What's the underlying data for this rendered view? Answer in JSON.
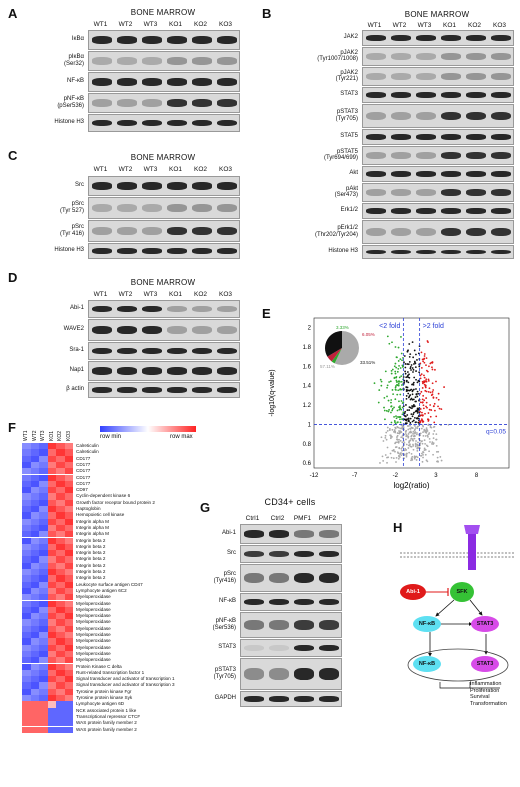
{
  "panels": {
    "A": {
      "letter": "A",
      "title": "BONE MARROW",
      "lanes": [
        "WT1",
        "WT2",
        "WT3",
        "KO1",
        "KO2",
        "KO3"
      ],
      "blots": [
        "IκBα",
        "pIκBα\n(Ser32)",
        "NF-κB",
        "pNF-κB\n(pSer536)",
        "Histone H3"
      ]
    },
    "B": {
      "letter": "B",
      "title": "BONE MARROW",
      "lanes": [
        "WT1",
        "WT2",
        "WT3",
        "KO1",
        "KO2",
        "KO3"
      ],
      "blots": [
        "JAK2",
        "pJAK2\n(Tyr1007/1008)",
        "pJAK2\n(Tyr221)",
        "STAT3",
        "pSTAT3\n(Tyr705)",
        "STAT5",
        "pSTAT5\n(Tyr694/699)",
        "Akt",
        "pAkt\n(Ser473)",
        "Erk1/2",
        "pErk1/2\n(Thr202/Tyr204)",
        "Histone H3"
      ]
    },
    "C": {
      "letter": "C",
      "title": "BONE MARROW",
      "lanes": [
        "WT1",
        "WT2",
        "WT3",
        "KO1",
        "KO2",
        "KO3"
      ],
      "blots": [
        "Src",
        "pSrc\n(Tyr 527)",
        "pSrc\n(Tyr 416)",
        "Histone H3"
      ]
    },
    "D": {
      "letter": "D",
      "title": "BONE MARROW",
      "lanes": [
        "WT1",
        "WT2",
        "WT3",
        "KO1",
        "KO2",
        "KO3"
      ],
      "blots": [
        "Abi-1",
        "WAVE2",
        "Sra-1",
        "Nap1",
        "β actin"
      ]
    },
    "E": {
      "letter": "E",
      "ylabel": "-log10(q-value)",
      "xlabel": "log2(ratio)",
      "yticks": [
        "2",
        "1.8",
        "1.6",
        "1.4",
        "1.2",
        "1",
        "0.8",
        "0.6"
      ],
      "xticks": [
        "-12",
        "-7",
        "-2",
        "3",
        "8"
      ],
      "lt": "<2 fold",
      "gt": ">2 fold",
      "q": "q=0.05",
      "pie": {
        "green": "3.33%",
        "red": "6.05%",
        "black": "33.51%",
        "grey": "57.11%"
      }
    },
    "F": {
      "letter": "F",
      "legend_min": "row min",
      "legend_max": "row max",
      "cols": [
        "WT1",
        "WT2",
        "WT3",
        "KO1",
        "KO2",
        "KO3"
      ],
      "rows": [
        "Calreticulin",
        "Calreticulin",
        "CD177",
        "CD177",
        "CD177",
        "CD177",
        "CD177",
        "CD97",
        "Cyclin-dependent kinase 6",
        "Growth factor receptor bound protein 2",
        "Haptoglobin",
        "Hemopoietic cell kinase",
        "Integrin alpha M",
        "Integrin alpha M",
        "Integrin alpha M",
        "Integrin beta 2",
        "Integrin beta 2",
        "Integrin beta 2",
        "Integrin beta 2",
        "Integrin beta 2",
        "Integrin beta 2",
        "Integrin beta 2",
        "Leukocyte surface antigen CD47",
        "Lymphocyte antigen 6C2",
        "Myeloperoxidase",
        "Myeloperoxidase",
        "Myeloperoxidase",
        "Myeloperoxidase",
        "Myeloperoxidase",
        "Myeloperoxidase",
        "Myeloperoxidase",
        "Myeloperoxidase",
        "Myeloperoxidase",
        "Myeloperoxidase",
        "Myeloperoxidase",
        "Protein Kinase C delta",
        "Runt-related transcription factor 1",
        "Signal transducer and activator of transcription 1",
        "Signal transducer and activator of transcription 3",
        "Tyrosine protein kinase Fgr",
        "Tyrosine protein kinase Syk",
        "Lymphocyte antigen 6D",
        "NCK associated protein 1 like",
        "Transcriptional repressor CTCF",
        "WAS protein family member 2",
        "WAS protein family member 2"
      ]
    },
    "G": {
      "letter": "G",
      "title": "CD34+ cells",
      "lanes": [
        "Ctrl1",
        "Ctrl2",
        "PMF1",
        "PMF2"
      ],
      "blots": [
        "Abi-1",
        "Src",
        "pSrc\n(Tyr416)",
        "NF-κB",
        "pNF-κB\n(Ser536)",
        "STAT3",
        "pSTAT3\n(Tyr705)",
        "GAPDH"
      ]
    },
    "H": {
      "letter": "H",
      "nodes": {
        "abi": "Abi-1",
        "sfk": "SFK",
        "nfkb": "NF-κB",
        "stat3": "STAT3"
      },
      "outcomes": [
        "Inflammation",
        "Proliferation",
        "Survival",
        "Transformation"
      ]
    }
  },
  "colors": {
    "blue": "#2b3fd6",
    "red": "#e01a1a",
    "green": "#2fa82f",
    "purple": "#8b2be2"
  }
}
